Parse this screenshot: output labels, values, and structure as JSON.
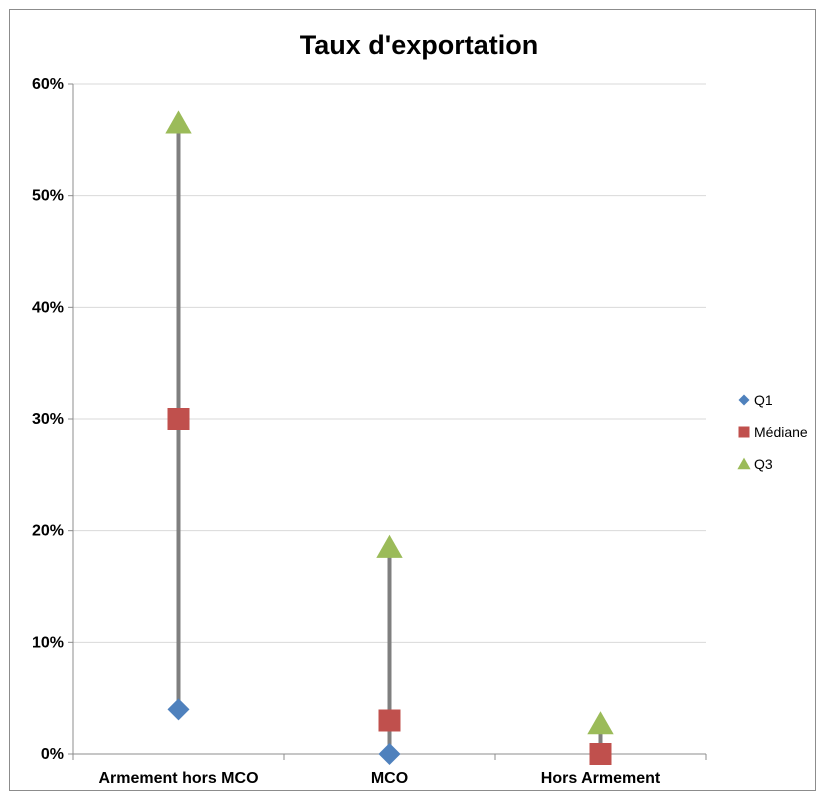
{
  "chart_data": {
    "type": "scatter",
    "title": "Taux d'exportation",
    "xlabel": "",
    "ylabel": "",
    "categories": [
      "Armement hors MCO",
      "MCO",
      "Hors Armement"
    ],
    "ylim": [
      0,
      0.6
    ],
    "yticks": [
      0,
      0.1,
      0.2,
      0.3,
      0.4,
      0.5,
      0.6
    ],
    "ytick_labels": [
      "0%",
      "10%",
      "20%",
      "30%",
      "40%",
      "50%",
      "60%"
    ],
    "grid": true,
    "legend_position": "right",
    "range_line": {
      "from_series": "Q1",
      "to_series": "Q3",
      "color": "#7f7f7f"
    },
    "series": [
      {
        "name": "Q1",
        "marker": "diamond",
        "color": "#4f81bd",
        "values": [
          0.04,
          0.0,
          0.0
        ]
      },
      {
        "name": "Médiane",
        "marker": "square",
        "color": "#c0504d",
        "values": [
          0.3,
          0.03,
          0.0
        ]
      },
      {
        "name": "Q3",
        "marker": "triangle",
        "color": "#9bbb59",
        "values": [
          0.565,
          0.185,
          0.027
        ]
      }
    ]
  }
}
